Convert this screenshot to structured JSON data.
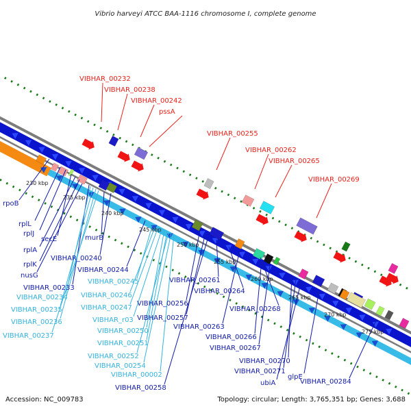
{
  "title": "Vibrio harveyi ATCC BAA-1116 chromosome I, complete genome",
  "footer": {
    "accession": "Accession: NC_009783",
    "summary": "Topology: circular; Length: 3,765,351 bp; Genes: 3,688"
  },
  "colors": {
    "red_labels": "#e8211b",
    "blue_labels": "#101aa8",
    "cyan_labels": "#33b3dd",
    "outer_ring": "#7c7c7c",
    "blue_band": "#0a14cc",
    "orange_band": "#f58a12",
    "cyan_band": "#38bbe6",
    "tick_green": "#177a17"
  },
  "kbp_ticks": [
    "230 kbp",
    "235 kbp",
    "240 kbp",
    "245 kbp",
    "250 kbp",
    "255 kbp",
    "260 kbp",
    "265 kbp",
    "270 kbp",
    "275 kbp"
  ],
  "labels_red": [
    "VIBHAR_00232",
    "VIBHAR_00238",
    "VIBHAR_00242",
    "pssA",
    "VIBHAR_00255",
    "VIBHAR_00262",
    "VIBHAR_00265",
    "VIBHAR_00269"
  ],
  "labels_blue": [
    "rpoB",
    "rplL",
    "rplJ",
    "secE",
    "rplA",
    "rplK",
    "nusG",
    "VIBHAR_00233",
    "murB",
    "VIBHAR_00240",
    "VIBHAR_00244",
    "VIBHAR_00256",
    "VIBHAR_00257",
    "VIBHAR_00258",
    "VIBHAR_00261",
    "VIBHAR_00264",
    "VIBHAR_00263",
    "VIBHAR_00266",
    "VIBHAR_00267",
    "VIBHAR_00268",
    "VIBHAR_00270",
    "VIBHAR_00271",
    "ubiA",
    "glpE",
    "VIBHAR_00284"
  ],
  "labels_cyan": [
    "VIBHAR_00234",
    "VIBHAR_00235",
    "VIBHAR_00236",
    "VIBHAR_00237",
    "VIBHAR_00245",
    "VIBHAR_00246",
    "VIBHAR_00247",
    "VIBHAR_r03",
    "VIBHAR_00250",
    "VIBHAR_00251",
    "VIBHAR_00252",
    "VIBHAR_00254",
    "VIBHAR_00002"
  ]
}
